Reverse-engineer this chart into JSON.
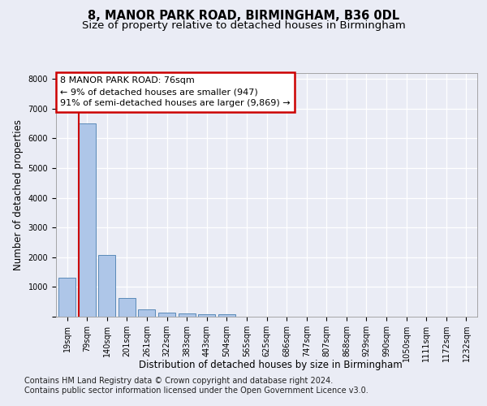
{
  "title_line1": "8, MANOR PARK ROAD, BIRMINGHAM, B36 0DL",
  "title_line2": "Size of property relative to detached houses in Birmingham",
  "xlabel": "Distribution of detached houses by size in Birmingham",
  "ylabel": "Number of detached properties",
  "categories": [
    "19sqm",
    "79sqm",
    "140sqm",
    "201sqm",
    "261sqm",
    "322sqm",
    "383sqm",
    "443sqm",
    "504sqm",
    "565sqm",
    "625sqm",
    "686sqm",
    "747sqm",
    "807sqm",
    "868sqm",
    "929sqm",
    "990sqm",
    "1050sqm",
    "1111sqm",
    "1172sqm",
    "1232sqm"
  ],
  "values": [
    1300,
    6500,
    2080,
    620,
    250,
    130,
    100,
    70,
    70,
    0,
    0,
    0,
    0,
    0,
    0,
    0,
    0,
    0,
    0,
    0,
    0
  ],
  "bar_color": "#aec6e8",
  "bar_edge_color": "#5a8ab8",
  "vline_x_index": 1,
  "vline_color": "#cc0000",
  "annotation_text": "8 MANOR PARK ROAD: 76sqm\n← 9% of detached houses are smaller (947)\n91% of semi-detached houses are larger (9,869) →",
  "annotation_box_color": "#ffffff",
  "annotation_box_edge": "#cc0000",
  "ylim": [
    0,
    8200
  ],
  "yticks": [
    0,
    1000,
    2000,
    3000,
    4000,
    5000,
    6000,
    7000,
    8000
  ],
  "footer_line1": "Contains HM Land Registry data © Crown copyright and database right 2024.",
  "footer_line2": "Contains public sector information licensed under the Open Government Licence v3.0.",
  "bg_color": "#eaecf5",
  "plot_bg_color": "#eaecf5",
  "grid_color": "#ffffff",
  "title_fontsize": 10.5,
  "subtitle_fontsize": 9.5,
  "axis_label_fontsize": 8.5,
  "tick_fontsize": 7,
  "footer_fontsize": 7,
  "annotation_fontsize": 8
}
